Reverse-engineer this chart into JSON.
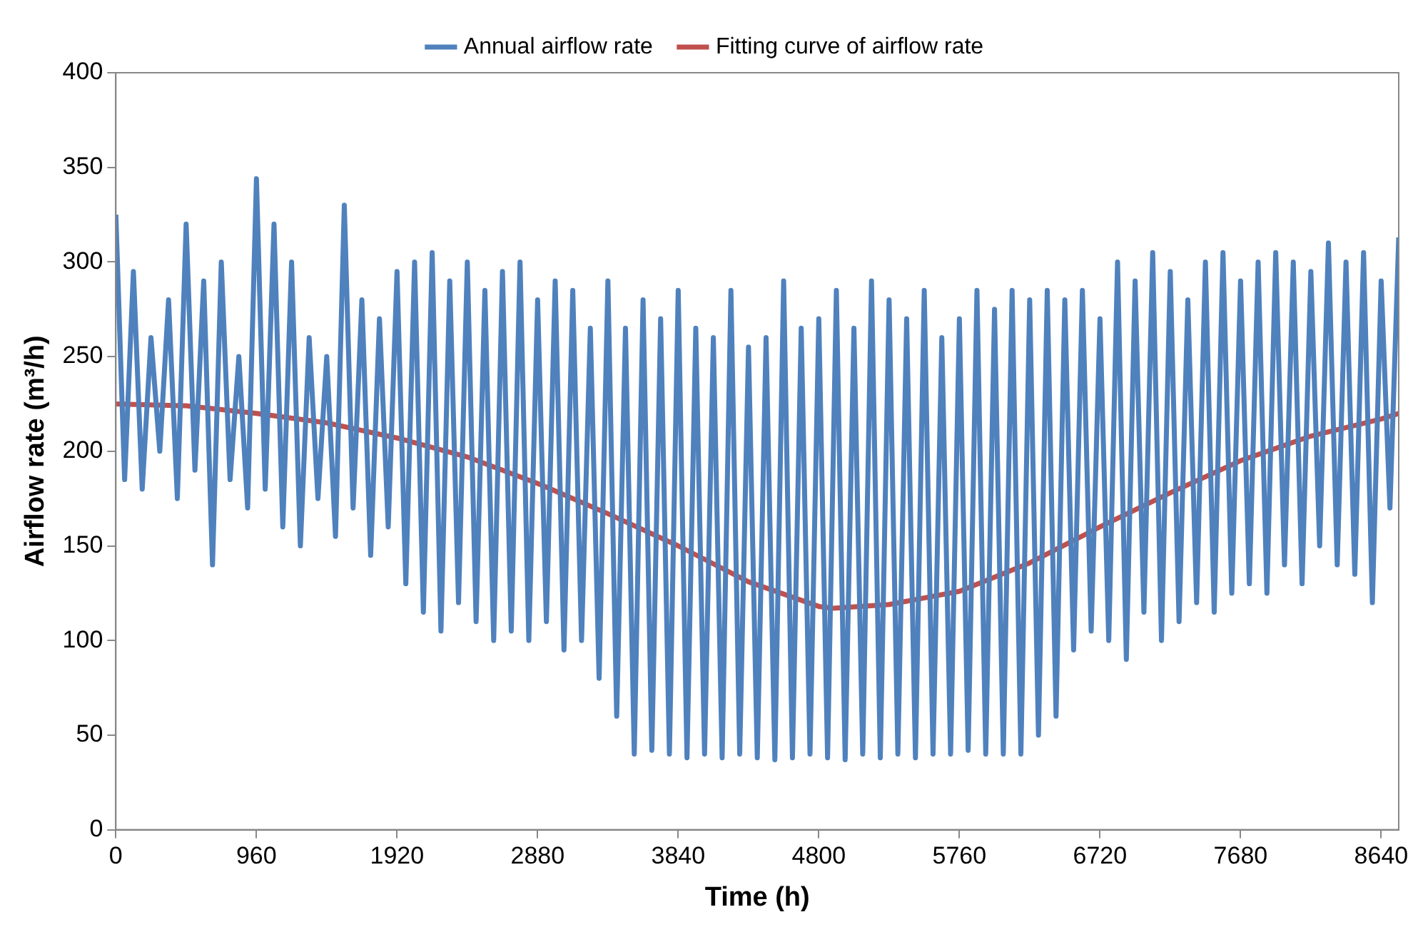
{
  "chart_data": {
    "type": "line",
    "xlabel": "Time (h)",
    "ylabel": "Airflow rate (m³/h)",
    "xlim": [
      0,
      8760
    ],
    "xticks": [
      0,
      960,
      1920,
      2880,
      3840,
      4800,
      5760,
      6720,
      7680,
      8640
    ],
    "ylim": [
      0,
      400
    ],
    "yticks": [
      0,
      50,
      100,
      150,
      200,
      250,
      300,
      350,
      400
    ],
    "grid": false,
    "legend": "top",
    "marker": "none",
    "line_style": "solid",
    "series": [
      {
        "name": "Annual airflow rate",
        "color": "#4f81bd",
        "x": [
          0,
          60,
          120,
          180,
          240,
          300,
          360,
          420,
          480,
          540,
          600,
          660,
          720,
          780,
          840,
          900,
          960,
          1020,
          1080,
          1140,
          1200,
          1260,
          1320,
          1380,
          1440,
          1500,
          1560,
          1620,
          1680,
          1740,
          1800,
          1860,
          1920,
          1980,
          2040,
          2100,
          2160,
          2220,
          2280,
          2340,
          2400,
          2460,
          2520,
          2580,
          2640,
          2700,
          2760,
          2820,
          2880,
          2940,
          3000,
          3060,
          3120,
          3180,
          3240,
          3300,
          3360,
          3420,
          3480,
          3540,
          3600,
          3660,
          3720,
          3780,
          3840,
          3900,
          3960,
          4020,
          4080,
          4140,
          4200,
          4260,
          4320,
          4380,
          4440,
          4500,
          4560,
          4620,
          4680,
          4740,
          4800,
          4860,
          4920,
          4980,
          5040,
          5100,
          5160,
          5220,
          5280,
          5340,
          5400,
          5460,
          5520,
          5580,
          5640,
          5700,
          5760,
          5820,
          5880,
          5940,
          6000,
          6060,
          6120,
          6180,
          6240,
          6300,
          6360,
          6420,
          6480,
          6540,
          6600,
          6660,
          6720,
          6780,
          6840,
          6900,
          6960,
          7020,
          7080,
          7140,
          7200,
          7260,
          7320,
          7380,
          7440,
          7500,
          7560,
          7620,
          7680,
          7740,
          7800,
          7860,
          7920,
          7980,
          8040,
          8100,
          8160,
          8220,
          8280,
          8340,
          8400,
          8460,
          8520,
          8580,
          8640,
          8700,
          8760
        ],
        "values": [
          325,
          185,
          295,
          180,
          260,
          200,
          280,
          175,
          320,
          190,
          290,
          140,
          300,
          185,
          250,
          170,
          344,
          180,
          320,
          160,
          300,
          150,
          260,
          175,
          250,
          155,
          330,
          170,
          280,
          145,
          270,
          160,
          295,
          130,
          300,
          115,
          305,
          105,
          290,
          120,
          300,
          110,
          285,
          100,
          295,
          105,
          300,
          100,
          280,
          110,
          290,
          95,
          285,
          100,
          265,
          80,
          290,
          60,
          265,
          40,
          280,
          42,
          270,
          40,
          285,
          38,
          265,
          40,
          260,
          38,
          285,
          40,
          255,
          38,
          260,
          37,
          290,
          38,
          265,
          40,
          270,
          38,
          285,
          37,
          265,
          40,
          290,
          38,
          280,
          40,
          270,
          38,
          285,
          40,
          260,
          40,
          270,
          42,
          285,
          40,
          275,
          40,
          285,
          40,
          280,
          50,
          285,
          60,
          280,
          95,
          285,
          105,
          270,
          100,
          300,
          90,
          290,
          115,
          305,
          100,
          295,
          110,
          280,
          120,
          300,
          115,
          305,
          125,
          290,
          130,
          300,
          125,
          305,
          140,
          300,
          130,
          295,
          150,
          310,
          140,
          300,
          135,
          305,
          120,
          290,
          170,
          313
        ]
      },
      {
        "name": "Fitting curve of airflow rate",
        "color": "#c0504d",
        "x": [
          0,
          480,
          960,
          1440,
          1920,
          2400,
          2880,
          3360,
          3840,
          4320,
          4800,
          4900,
          5280,
          5760,
          6240,
          6720,
          7200,
          7680,
          8160,
          8640,
          8760
        ],
        "values": [
          225,
          224,
          220,
          215,
          207,
          197,
          183,
          167,
          150,
          131,
          118,
          117,
          119,
          126,
          141,
          160,
          178,
          195,
          208,
          217,
          220
        ]
      }
    ]
  }
}
